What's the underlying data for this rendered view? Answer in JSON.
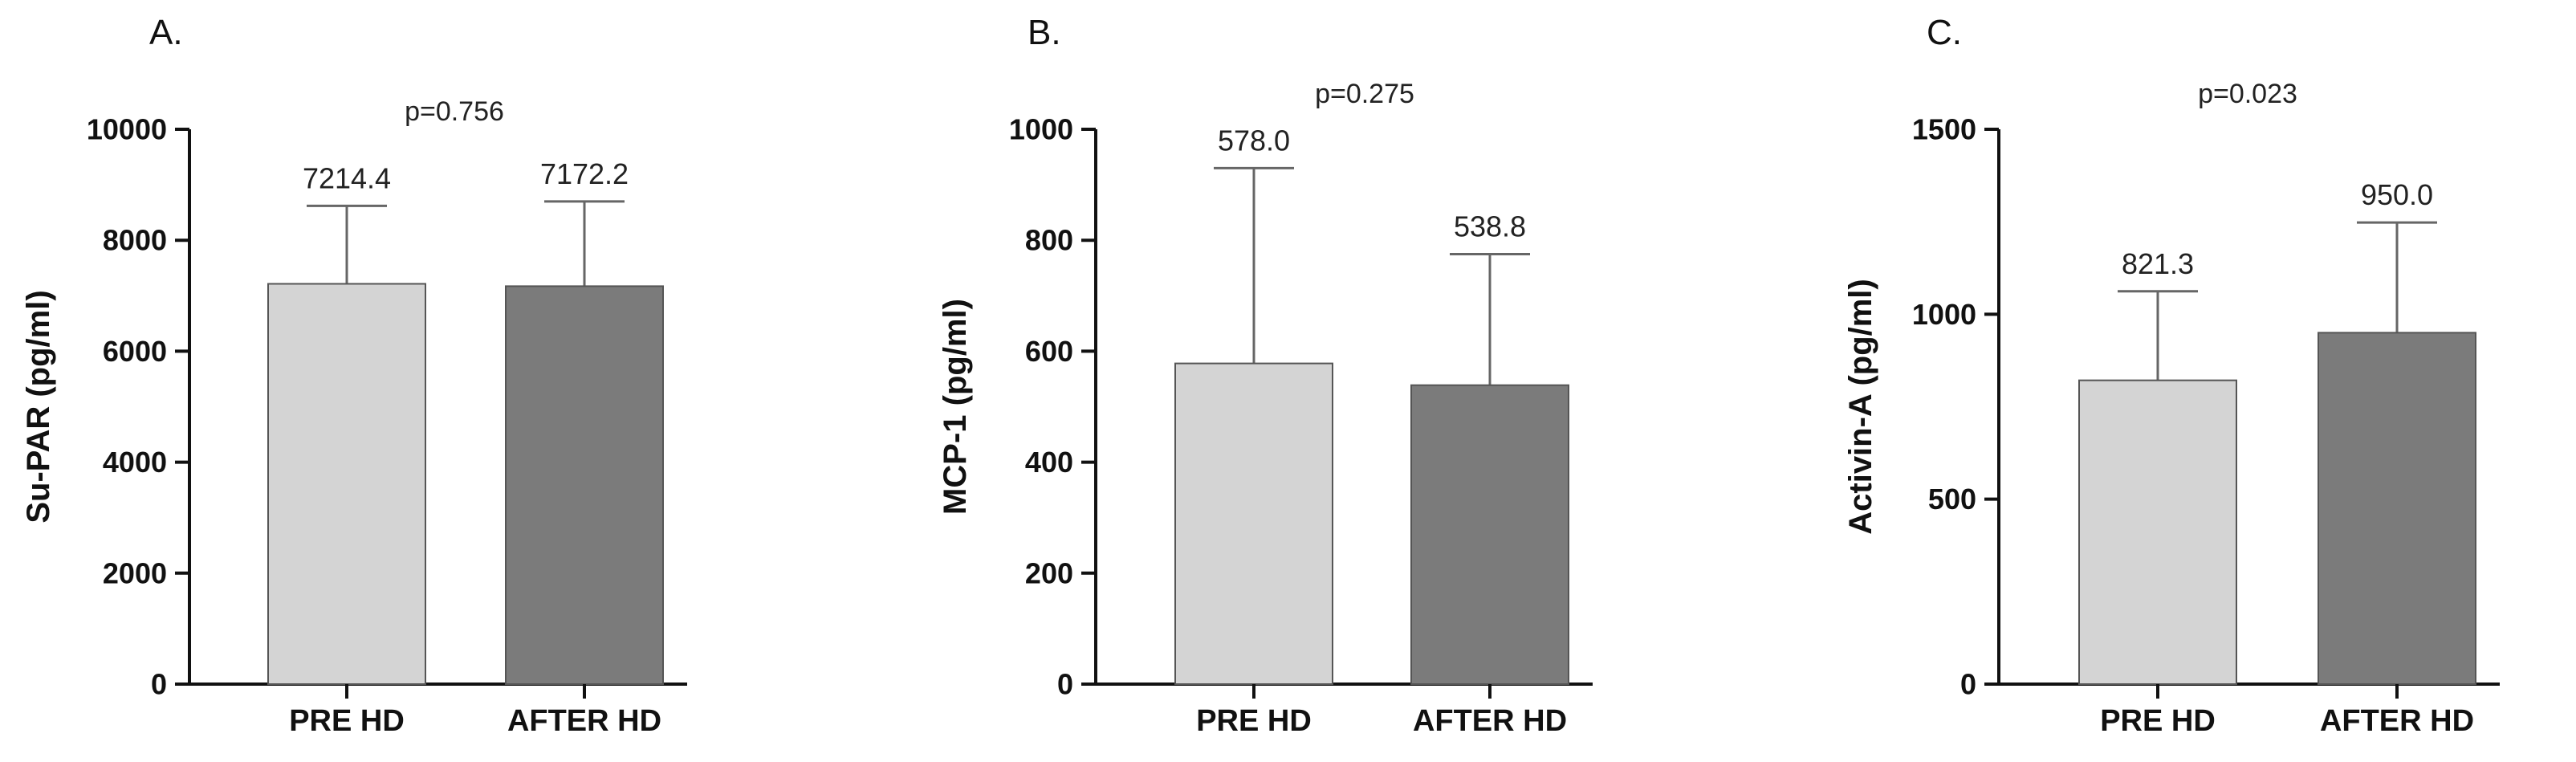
{
  "chart_data": [
    {
      "type": "bar",
      "panel_label": "A.",
      "annotation": "p=0.756",
      "ylabel": "Su-PAR (pg/ml)",
      "ylim": [
        0,
        10000
      ],
      "yticks": [
        0,
        2000,
        4000,
        6000,
        8000,
        10000
      ],
      "categories": [
        "PRE HD",
        "AFTER HD"
      ],
      "values": [
        7214.4,
        7172.2
      ],
      "error_upper": [
        8620,
        8700
      ],
      "value_labels": [
        "7214.4",
        "7172.2"
      ],
      "bar_colors": [
        "#d4d4d4",
        "#7b7b7b"
      ]
    },
    {
      "type": "bar",
      "panel_label": "B.",
      "annotation": "p=0.275",
      "ylabel": "MCP-1 (pg/ml)",
      "ylim": [
        0,
        1000
      ],
      "yticks": [
        0,
        200,
        400,
        600,
        800,
        1000
      ],
      "categories": [
        "PRE HD",
        "AFTER HD"
      ],
      "values": [
        578.0,
        538.8
      ],
      "error_upper": [
        930,
        775
      ],
      "value_labels": [
        "578.0",
        "538.8"
      ],
      "bar_colors": [
        "#d4d4d4",
        "#7b7b7b"
      ]
    },
    {
      "type": "bar",
      "panel_label": "C.",
      "annotation": "p=0.023",
      "ylabel": "Activin-A (pg/ml)",
      "ylim": [
        0,
        1500
      ],
      "yticks": [
        0,
        500,
        1000,
        1500
      ],
      "categories": [
        "PRE HD",
        "AFTER HD"
      ],
      "values": [
        821.3,
        950.0
      ],
      "error_upper": [
        1062,
        1248
      ],
      "value_labels": [
        "821.3",
        "950.0"
      ],
      "bar_colors": [
        "#d4d4d4",
        "#7b7b7b"
      ]
    }
  ]
}
